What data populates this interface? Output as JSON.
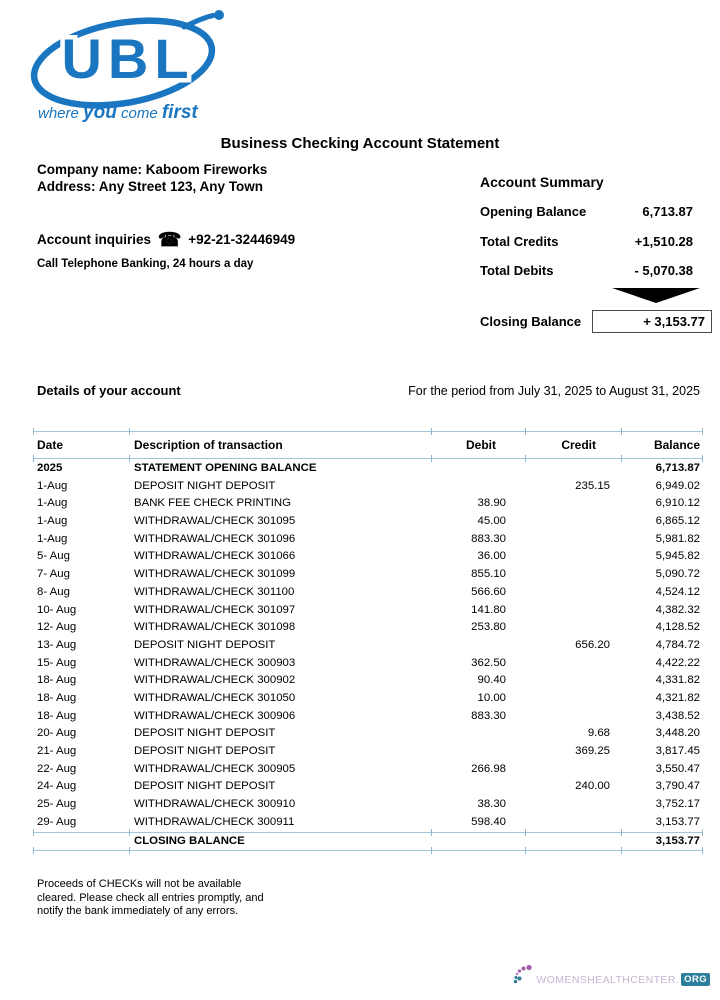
{
  "brand": {
    "logo_text": "UBL",
    "blue": "#1a76c0",
    "tagline": {
      "w1": "where",
      "w2": "you",
      "w3": "come",
      "w4": "first"
    }
  },
  "title": "Business Checking Account Statement",
  "company": {
    "name_line": "Company name: Kaboom Fireworks",
    "address_line": "Address: Any Street 123, Any Town",
    "inquiries_label": "Account inquiries",
    "phone_icon": "☎",
    "phone_number": "+92-21-32446949",
    "telebanking_line": "Call Telephone Banking, 24 hours a day"
  },
  "account_summary": {
    "title": "Account Summary",
    "rows": [
      {
        "label": "Opening Balance",
        "value": "6,713.87"
      },
      {
        "label": "Total Credits",
        "value": "+1,510.28"
      },
      {
        "label": "Total Debits",
        "value": "- 5,070.38"
      }
    ],
    "closing": {
      "label": "Closing Balance",
      "value": "+ 3,153.77"
    }
  },
  "details": {
    "heading": "Details of your account",
    "period": "For the period from July 31, 2025 to August 31, 2025"
  },
  "table": {
    "headers": [
      "Date",
      "Description of transaction",
      "Debit",
      "Credit",
      "Balance"
    ],
    "rows": [
      {
        "date": "2025",
        "description": "STATEMENT OPENING BALANCE",
        "debit": "",
        "credit": "",
        "balance": "6,713.87",
        "bold": true
      },
      {
        "date": "1-Aug",
        "description": "DEPOSIT NIGHT DEPOSIT",
        "debit": "",
        "credit": "235.15",
        "balance": "6,949.02"
      },
      {
        "date": "1-Aug",
        "description": "BANK FEE CHECK PRINTING",
        "debit": "38.90",
        "credit": "",
        "balance": "6,910.12"
      },
      {
        "date": "1-Aug",
        "description": "WITHDRAWAL/CHECK 301095",
        "debit": "45.00",
        "credit": "",
        "balance": "6,865.12"
      },
      {
        "date": "1-Aug",
        "description": "WITHDRAWAL/CHECK 301096",
        "debit": "883.30",
        "credit": "",
        "balance": "5,981.82"
      },
      {
        "date": "5- Aug",
        "description": "WITHDRAWAL/CHECK 301066",
        "debit": "36.00",
        "credit": "",
        "balance": "5,945.82"
      },
      {
        "date": "7- Aug",
        "description": "WITHDRAWAL/CHECK 301099",
        "debit": "855.10",
        "credit": "",
        "balance": "5,090.72"
      },
      {
        "date": "8- Aug",
        "description": "WITHDRAWAL/CHECK 301100",
        "debit": "566.60",
        "credit": "",
        "balance": "4,524.12"
      },
      {
        "date": "10- Aug",
        "description": "WITHDRAWAL/CHECK 301097",
        "debit": "141.80",
        "credit": "",
        "balance": "4,382.32"
      },
      {
        "date": "12- Aug",
        "description": "WITHDRAWAL/CHECK 301098",
        "debit": "253.80",
        "credit": "",
        "balance": "4,128.52"
      },
      {
        "date": "13- Aug",
        "description": "DEPOSIT NIGHT DEPOSIT",
        "debit": "",
        "credit": "656.20",
        "balance": "4,784.72"
      },
      {
        "date": "15- Aug",
        "description": "WITHDRAWAL/CHECK 300903",
        "debit": "362.50",
        "credit": "",
        "balance": "4,422.22"
      },
      {
        "date": "18- Aug",
        "description": "WITHDRAWAL/CHECK 300902",
        "debit": "90.40",
        "credit": "",
        "balance": "4,331.82"
      },
      {
        "date": "18- Aug",
        "description": "WITHDRAWAL/CHECK 301050",
        "debit": "10.00",
        "credit": "",
        "balance": "4,321.82"
      },
      {
        "date": "18- Aug",
        "description": "WITHDRAWAL/CHECK 300906",
        "debit": "883.30",
        "credit": "",
        "balance": "3,438.52"
      },
      {
        "date": "20- Aug",
        "description": "DEPOSIT NIGHT DEPOSIT",
        "debit": "",
        "credit": "9.68",
        "balance": "3,448.20"
      },
      {
        "date": "21- Aug",
        "description": "DEPOSIT NIGHT DEPOSIT",
        "debit": "",
        "credit": "369.25",
        "balance": "3,817.45"
      },
      {
        "date": "22- Aug",
        "description": "WITHDRAWAL/CHECK 300905",
        "debit": "266.98",
        "credit": "",
        "balance": "3,550.47"
      },
      {
        "date": "24- Aug",
        "description": "DEPOSIT NIGHT DEPOSIT",
        "debit": "",
        "credit": "240.00",
        "balance": "3,790.47"
      },
      {
        "date": "25- Aug",
        "description": "WITHDRAWAL/CHECK 300910",
        "debit": "38.30",
        "credit": "",
        "balance": "3,752.17"
      },
      {
        "date": "29- Aug",
        "description": "WITHDRAWAL/CHECK 300911",
        "debit": "598.40",
        "credit": "",
        "balance": "3,153.77"
      }
    ],
    "closing_row": {
      "description": "CLOSING BALANCE",
      "balance": "3,153.77"
    }
  },
  "footer": {
    "line1": "Proceeds of CHECKs will not be available",
    "line2": "cleared. Please check all entries promptly, and",
    "line3": "notify the bank immediately of any errors."
  },
  "watermark": {
    "name": "WOMENSHEALTHCENTER",
    "dot": ".",
    "suffix": "ORG"
  }
}
